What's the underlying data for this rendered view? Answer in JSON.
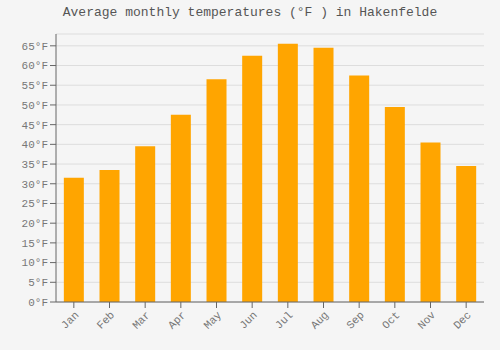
{
  "chart_data": {
    "type": "bar",
    "title": "Average monthly temperatures (°F ) in Hakenfelde",
    "categories": [
      "Jan",
      "Feb",
      "Mar",
      "Apr",
      "May",
      "Jun",
      "Jul",
      "Aug",
      "Sep",
      "Oct",
      "Nov",
      "Dec"
    ],
    "values": [
      31.5,
      33.5,
      39.5,
      47.5,
      56.5,
      62.5,
      65.5,
      64.5,
      57.5,
      49.5,
      40.5,
      34.5
    ],
    "color": "#FFA500",
    "ylim": [
      0,
      68
    ],
    "yticks": [
      {
        "value": 0,
        "label": "0°F"
      },
      {
        "value": 5,
        "label": "5°F"
      },
      {
        "value": 10,
        "label": "10°F"
      },
      {
        "value": 15,
        "label": "15°F"
      },
      {
        "value": 20,
        "label": "20°F"
      },
      {
        "value": 25,
        "label": "25°F"
      },
      {
        "value": 30,
        "label": "30°F"
      },
      {
        "value": 35,
        "label": "35°F"
      },
      {
        "value": 40,
        "label": "40°F"
      },
      {
        "value": 45,
        "label": "45°F"
      },
      {
        "value": 50,
        "label": "50°F"
      },
      {
        "value": 55,
        "label": "55°F"
      },
      {
        "value": 60,
        "label": "60°F"
      },
      {
        "value": 65,
        "label": "65°F"
      }
    ],
    "grid": true
  }
}
